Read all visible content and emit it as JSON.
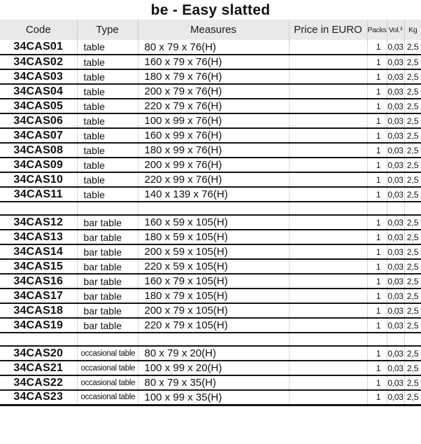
{
  "title": "be - Easy slatted",
  "columns": {
    "code": "Code",
    "type": "Type",
    "measures": "Measures",
    "price": "Price in EURO",
    "packs": "Packs",
    "vol": "Vol.³",
    "kg": "Kg"
  },
  "colors": {
    "header_bg": "#e9e9e9",
    "row_line": "#141414",
    "dotted_separator": "#b3b3b3",
    "text": "#111111"
  },
  "groups": [
    {
      "rows": [
        {
          "code": "34CAS01",
          "type": "table",
          "measures": "80 x 79 x 76(H)",
          "price": "",
          "packs": "1",
          "vol": "0,03",
          "kg": "2,5"
        },
        {
          "code": "34CAS02",
          "type": "table",
          "measures": "160 x 79 x 76(H)",
          "price": "",
          "packs": "1",
          "vol": "0,03",
          "kg": "2,5"
        },
        {
          "code": "34CAS03",
          "type": "table",
          "measures": "180 x 79 x 76(H)",
          "price": "",
          "packs": "1",
          "vol": "0,03",
          "kg": "2,5"
        },
        {
          "code": "34CAS04",
          "type": "table",
          "measures": "200 x 79 x 76(H)",
          "price": "",
          "packs": "1",
          "vol": "0,03",
          "kg": "2,5"
        },
        {
          "code": "34CAS05",
          "type": "table",
          "measures": "220 x 79 x 76(H)",
          "price": "",
          "packs": "1",
          "vol": "0,03",
          "kg": "2,5"
        },
        {
          "code": "34CAS06",
          "type": "table",
          "measures": "100 x 99 x 76(H)",
          "price": "",
          "packs": "1",
          "vol": "0,03",
          "kg": "2,5"
        },
        {
          "code": "34CAS07",
          "type": "table",
          "measures": "160 x 99 x 76(H)",
          "price": "",
          "packs": "1",
          "vol": "0,03",
          "kg": "2,5"
        },
        {
          "code": "34CAS08",
          "type": "table",
          "measures": "180 x 99 x 76(H)",
          "price": "",
          "packs": "1",
          "vol": "0,03",
          "kg": "2,5"
        },
        {
          "code": "34CAS09",
          "type": "table",
          "measures": "200 x 99 x 76(H)",
          "price": "",
          "packs": "1",
          "vol": "0,03",
          "kg": "2,5"
        },
        {
          "code": "34CAS10",
          "type": "table",
          "measures": "220 x 99 x 76(H)",
          "price": "",
          "packs": "1",
          "vol": "0,03",
          "kg": "2,5"
        },
        {
          "code": "34CAS11",
          "type": "table",
          "measures": "140 x 139 x 76(H)",
          "price": "",
          "packs": "1",
          "vol": "0,03",
          "kg": "2,5"
        }
      ]
    },
    {
      "rows": [
        {
          "code": "34CAS12",
          "type": "bar table",
          "measures": "160 x 59 x 105(H)",
          "price": "",
          "packs": "1",
          "vol": "0,03",
          "kg": "2,5"
        },
        {
          "code": "34CAS13",
          "type": "bar table",
          "measures": "180 x 59 x 105(H)",
          "price": "",
          "packs": "1",
          "vol": "0,03",
          "kg": "2,5"
        },
        {
          "code": "34CAS14",
          "type": "bar table",
          "measures": "200 x 59 x 105(H)",
          "price": "",
          "packs": "1",
          "vol": "0,03",
          "kg": "2,5"
        },
        {
          "code": "34CAS15",
          "type": "bar table",
          "measures": "220 x 59 x 105(H)",
          "price": "",
          "packs": "1",
          "vol": "0,03",
          "kg": "2,5"
        },
        {
          "code": "34CAS16",
          "type": "bar table",
          "measures": "160 x 79 x 105(H)",
          "price": "",
          "packs": "1",
          "vol": "0,03",
          "kg": "2,5"
        },
        {
          "code": "34CAS17",
          "type": "bar table",
          "measures": "180 x 79 x 105(H)",
          "price": "",
          "packs": "1",
          "vol": "0,03",
          "kg": "2,5"
        },
        {
          "code": "34CAS18",
          "type": "bar table",
          "measures": "200 x 79 x 105(H)",
          "price": "",
          "packs": "1",
          "vol": "0,03",
          "kg": "2,5"
        },
        {
          "code": "34CAS19",
          "type": "bar table",
          "measures": "220 x 79 x 105(H)",
          "price": "",
          "packs": "1",
          "vol": "0,03",
          "kg": "2,5"
        }
      ]
    },
    {
      "rows": [
        {
          "code": "34CAS20",
          "type": "occasional table",
          "measures": "80 x 79 x 20(H)",
          "price": "",
          "packs": "1",
          "vol": "0,03",
          "kg": "2,5"
        },
        {
          "code": "34CAS21",
          "type": "occasional table",
          "measures": "100 x 99 x 20(H)",
          "price": "",
          "packs": "1",
          "vol": "0,03",
          "kg": "2,5"
        },
        {
          "code": "34CAS22",
          "type": "occasional table",
          "measures": "80 x 79 x 35(H)",
          "price": "",
          "packs": "1",
          "vol": "0,03",
          "kg": "2,5"
        },
        {
          "code": "34CAS23",
          "type": "occasional table",
          "measures": "100 x 99 x 35(H)",
          "price": "",
          "packs": "1",
          "vol": "0,03",
          "kg": "2,5"
        }
      ]
    }
  ]
}
